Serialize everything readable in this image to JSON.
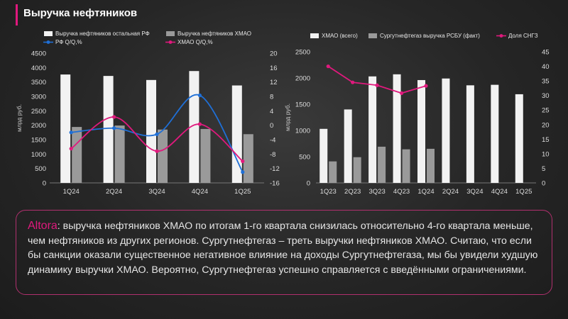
{
  "page": {
    "title": "Выручка нефтяников"
  },
  "colors": {
    "white_bar": "#f2f2f2",
    "gray_bar": "#9a9a9a",
    "blue_line": "#1f6fd6",
    "magenta_line": "#e0197d",
    "accent": "#e0197d"
  },
  "chart_data": [
    {
      "type": "bar",
      "categories": [
        "1Q24",
        "2Q24",
        "3Q24",
        "4Q24",
        "1Q25"
      ],
      "legend": [
        "Выручка нефтяников остальная РФ",
        "Выручка нефтяников ХМАО",
        "РФ Q/Q,%",
        "ХМАО Q/Q,%"
      ],
      "ylabel": "млрд руб.",
      "ylim": [
        0,
        4500
      ],
      "yticks": [
        "0",
        "500",
        "1000",
        "1500",
        "2000",
        "2500",
        "3000",
        "3500",
        "4000",
        "4500"
      ],
      "y2lim": [
        -16,
        20
      ],
      "y2ticks": [
        "-16",
        "-12",
        "-8",
        "-4",
        "0",
        "4",
        "8",
        "12",
        "16",
        "20"
      ],
      "series": [
        {
          "name": "Выручка нефтяников остальная РФ",
          "kind": "bar",
          "values": [
            3760,
            3710,
            3570,
            3880,
            3380
          ]
        },
        {
          "name": "Выручка нефтяников ХМАО",
          "kind": "bar",
          "values": [
            1940,
            1990,
            1850,
            1870,
            1690
          ]
        },
        {
          "name": "РФ Q/Q,%",
          "kind": "line",
          "axis": "right",
          "values": [
            -2,
            -0.8,
            -2.5,
            8.3,
            -13
          ]
        },
        {
          "name": "ХМАО Q/Q,%",
          "kind": "line",
          "axis": "right",
          "values": [
            -6.5,
            2.3,
            -7.2,
            0.3,
            -10
          ]
        }
      ]
    },
    {
      "type": "bar",
      "categories": [
        "1Q23",
        "2Q23",
        "3Q23",
        "4Q23",
        "1Q24",
        "2Q24",
        "3Q24",
        "4Q24",
        "1Q25"
      ],
      "legend": [
        "ХМАО (всего)",
        "Сургутнефтегаз выручка РСБУ (факт)",
        "Доля СНГЗ"
      ],
      "ylabel": "млрд руб.",
      "ylim": [
        0,
        2500
      ],
      "yticks": [
        "0",
        "500",
        "1000",
        "1500",
        "2000",
        "2500"
      ],
      "y2lim": [
        0,
        45
      ],
      "y2ticks": [
        "0",
        "5",
        "10",
        "15",
        "20",
        "25",
        "30",
        "35",
        "40",
        "45"
      ],
      "series": [
        {
          "name": "ХМАО (всего)",
          "kind": "bar",
          "values": [
            1030,
            1400,
            2030,
            2070,
            1960,
            1990,
            1860,
            1870,
            1690
          ]
        },
        {
          "name": "Сургутнефтегаз выручка РСБУ (факт)",
          "kind": "bar",
          "values": [
            410,
            490,
            690,
            640,
            650,
            null,
            null,
            null,
            null
          ]
        },
        {
          "name": "Доля СНГЗ",
          "kind": "line",
          "axis": "right",
          "values": [
            40,
            34.5,
            33.5,
            30.8,
            33.3,
            null,
            null,
            null,
            null
          ]
        }
      ]
    }
  ],
  "comment": {
    "brand": "Altora",
    "text": ": выручка нефтяников ХМАО по итогам 1-го квартала снизилась относительно 4-го квартала меньше, чем нефтяников из других регионов. Сургутнефтегаз – треть выручки нефтяников ХМАО. Считаю, что если бы санкции оказали существенное негативное влияние на доходы Сургутнефтегаза, мы бы увидели худшую динамику выручки ХМАО. Вероятно, Сургутнефтегаз успешно справляется с введёнными ограничениями."
  }
}
